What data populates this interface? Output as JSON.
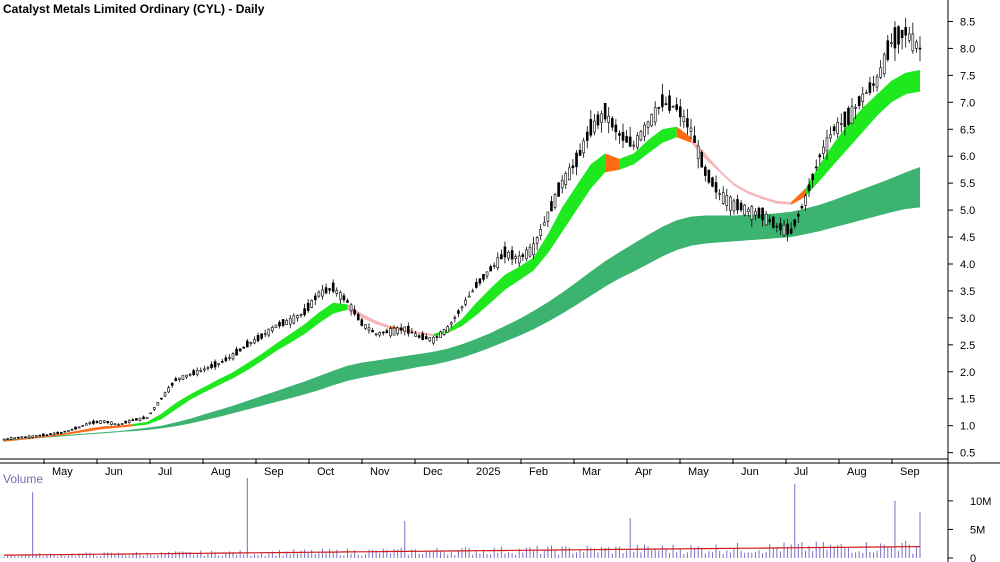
{
  "chart_data": [
    {
      "type": "candlestick",
      "title": "Catalyst Metals Limited Ordinary (CYL) - Daily",
      "ylim": [
        0.4,
        8.75
      ],
      "y_ticks": [
        0.5,
        1.0,
        1.5,
        2.0,
        2.5,
        3.0,
        3.5,
        4.0,
        4.5,
        5.0,
        5.5,
        6.0,
        6.5,
        7.0,
        7.5,
        8.0,
        8.5
      ],
      "y_tick_labels": [
        "0.5",
        "1.0",
        "1.5",
        "2.0",
        "2.5",
        "3.0",
        "3.5",
        "4.0",
        "4.5",
        "5.0",
        "5.5",
        "6.0",
        "6.5",
        "7.0",
        "7.5",
        "8.0",
        "8.5"
      ],
      "x_tick_labels": [
        "May",
        "Jun",
        "Jul",
        "Aug",
        "Sep",
        "Oct",
        "Nov",
        "Dec",
        "2025",
        "Feb",
        "Mar",
        "Apr",
        "May",
        "Jun",
        "Jul",
        "Aug",
        "Sep"
      ],
      "grid": false,
      "price_close": [
        0.75,
        0.78,
        0.8,
        0.83,
        0.87,
        0.95,
        1.05,
        1.08,
        1.02,
        1.1,
        1.15,
        1.5,
        1.85,
        1.95,
        2.05,
        2.15,
        2.3,
        2.5,
        2.65,
        2.85,
        2.95,
        3.1,
        3.45,
        3.55,
        3.3,
        2.9,
        2.7,
        2.75,
        2.8,
        2.65,
        2.6,
        2.8,
        3.2,
        3.6,
        3.9,
        4.2,
        4.1,
        4.3,
        4.9,
        5.5,
        5.9,
        6.5,
        6.8,
        6.4,
        6.2,
        6.6,
        7.0,
        6.9,
        6.5,
        5.7,
        5.3,
        5.1,
        5.0,
        4.9,
        4.7,
        4.6,
        5.2,
        6.0,
        6.5,
        6.7,
        7.1,
        7.4,
        8.1,
        8.3,
        8.0
      ],
      "fast_ma_band": [
        [
          0.7,
          0.72
        ],
        [
          0.73,
          0.75
        ],
        [
          0.76,
          0.78
        ],
        [
          0.79,
          0.81
        ],
        [
          0.82,
          0.85
        ],
        [
          0.86,
          0.9
        ],
        [
          0.9,
          0.95
        ],
        [
          0.94,
          0.99
        ],
        [
          0.96,
          1.0
        ],
        [
          0.99,
          1.03
        ],
        [
          1.02,
          1.07
        ],
        [
          1.12,
          1.22
        ],
        [
          1.3,
          1.42
        ],
        [
          1.48,
          1.58
        ],
        [
          1.62,
          1.72
        ],
        [
          1.75,
          1.86
        ],
        [
          1.88,
          1.99
        ],
        [
          2.03,
          2.16
        ],
        [
          2.2,
          2.33
        ],
        [
          2.38,
          2.52
        ],
        [
          2.54,
          2.7
        ],
        [
          2.7,
          2.88
        ],
        [
          2.9,
          3.1
        ],
        [
          3.08,
          3.28
        ],
        [
          3.15,
          3.25
        ],
        [
          3.0,
          3.08
        ],
        [
          2.88,
          2.95
        ],
        [
          2.8,
          2.85
        ],
        [
          2.76,
          2.8
        ],
        [
          2.7,
          2.74
        ],
        [
          2.66,
          2.7
        ],
        [
          2.72,
          2.78
        ],
        [
          2.85,
          2.98
        ],
        [
          3.05,
          3.28
        ],
        [
          3.28,
          3.55
        ],
        [
          3.52,
          3.8
        ],
        [
          3.7,
          3.95
        ],
        [
          3.88,
          4.12
        ],
        [
          4.2,
          4.55
        ],
        [
          4.6,
          5.05
        ],
        [
          5.0,
          5.45
        ],
        [
          5.4,
          5.85
        ],
        [
          5.7,
          6.05
        ],
        [
          5.75,
          5.95
        ],
        [
          5.85,
          6.05
        ],
        [
          6.05,
          6.3
        ],
        [
          6.25,
          6.5
        ],
        [
          6.35,
          6.55
        ],
        [
          6.25,
          6.35
        ],
        [
          5.95,
          6.05
        ],
        [
          5.7,
          5.75
        ],
        [
          5.45,
          5.5
        ],
        [
          5.3,
          5.35
        ],
        [
          5.2,
          5.25
        ],
        [
          5.12,
          5.17
        ],
        [
          5.1,
          5.15
        ],
        [
          5.25,
          5.4
        ],
        [
          5.55,
          5.85
        ],
        [
          5.85,
          6.25
        ],
        [
          6.15,
          6.6
        ],
        [
          6.45,
          6.9
        ],
        [
          6.75,
          7.15
        ],
        [
          7.0,
          7.4
        ],
        [
          7.15,
          7.55
        ],
        [
          7.2,
          7.6
        ]
      ],
      "slow_ma_band": [
        [
          0.72,
          0.74
        ],
        [
          0.74,
          0.76
        ],
        [
          0.76,
          0.78
        ],
        [
          0.78,
          0.8
        ],
        [
          0.8,
          0.82
        ],
        [
          0.82,
          0.84
        ],
        [
          0.84,
          0.86
        ],
        [
          0.86,
          0.88
        ],
        [
          0.88,
          0.9
        ],
        [
          0.9,
          0.93
        ],
        [
          0.92,
          0.96
        ],
        [
          0.95,
          1.0
        ],
        [
          0.99,
          1.06
        ],
        [
          1.04,
          1.13
        ],
        [
          1.1,
          1.21
        ],
        [
          1.16,
          1.29
        ],
        [
          1.23,
          1.37
        ],
        [
          1.3,
          1.46
        ],
        [
          1.37,
          1.55
        ],
        [
          1.44,
          1.64
        ],
        [
          1.51,
          1.73
        ],
        [
          1.58,
          1.82
        ],
        [
          1.66,
          1.92
        ],
        [
          1.75,
          2.02
        ],
        [
          1.83,
          2.11
        ],
        [
          1.89,
          2.17
        ],
        [
          1.94,
          2.21
        ],
        [
          1.99,
          2.25
        ],
        [
          2.04,
          2.29
        ],
        [
          2.09,
          2.33
        ],
        [
          2.13,
          2.37
        ],
        [
          2.19,
          2.43
        ],
        [
          2.26,
          2.51
        ],
        [
          2.35,
          2.61
        ],
        [
          2.45,
          2.72
        ],
        [
          2.56,
          2.85
        ],
        [
          2.67,
          2.98
        ],
        [
          2.79,
          3.13
        ],
        [
          2.93,
          3.29
        ],
        [
          3.08,
          3.47
        ],
        [
          3.24,
          3.66
        ],
        [
          3.41,
          3.86
        ],
        [
          3.58,
          4.05
        ],
        [
          3.73,
          4.22
        ],
        [
          3.86,
          4.38
        ],
        [
          4.0,
          4.54
        ],
        [
          4.14,
          4.69
        ],
        [
          4.26,
          4.81
        ],
        [
          4.34,
          4.88
        ],
        [
          4.38,
          4.9
        ],
        [
          4.4,
          4.9
        ],
        [
          4.42,
          4.9
        ],
        [
          4.44,
          4.91
        ],
        [
          4.46,
          4.92
        ],
        [
          4.48,
          4.94
        ],
        [
          4.5,
          4.97
        ],
        [
          4.55,
          5.03
        ],
        [
          4.61,
          5.1
        ],
        [
          4.68,
          5.19
        ],
        [
          4.75,
          5.29
        ],
        [
          4.82,
          5.39
        ],
        [
          4.89,
          5.49
        ],
        [
          4.96,
          5.59
        ],
        [
          5.02,
          5.7
        ],
        [
          5.05,
          5.8
        ]
      ],
      "volume_ylim": [
        0,
        14
      ],
      "volume_ticks": [
        0,
        5,
        10
      ],
      "volume_tick_labels": [
        "0",
        "5M",
        "10M"
      ],
      "volume_spikes_millions": [
        11.5,
        14.0,
        6.5,
        7.0,
        13.0,
        10.0,
        8.0,
        7.5
      ],
      "volume_baseline_millions": [
        0.5,
        2.0
      ]
    }
  ],
  "labels": {
    "title": "Catalyst Metals Limited Ordinary (CYL) - Daily",
    "volume_title": "Volume"
  },
  "colors": {
    "fast_up": "#1ee81e",
    "fast_down": "#ff6a13",
    "fast_weak": "#f4b6b6",
    "slow_band": "#3cb371",
    "volume_bar": "#7b6fc6",
    "volume_ma": "#d11a1a",
    "candle": "#000000"
  }
}
